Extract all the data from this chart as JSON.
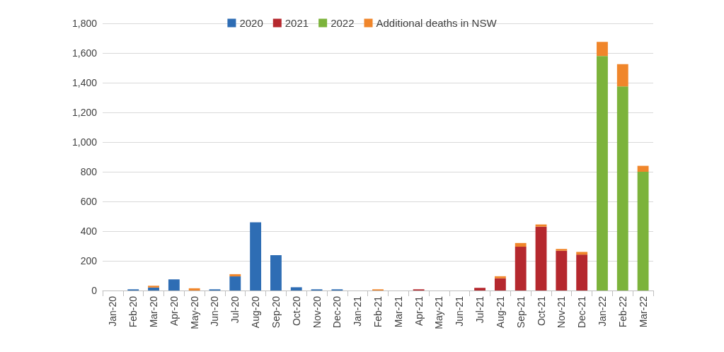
{
  "chart_data": {
    "type": "bar",
    "stacked": true,
    "categories": [
      "Jan-20",
      "Feb-20",
      "Mar-20",
      "Apr-20",
      "May-20",
      "Jun-20",
      "Jul-20",
      "Aug-20",
      "Sep-20",
      "Oct-20",
      "Nov-20",
      "Dec-20",
      "Jan-21",
      "Feb-21",
      "Mar-21",
      "Apr-21",
      "May-21",
      "Jun-21",
      "Jul-21",
      "Aug-21",
      "Sep-21",
      "Oct-21",
      "Nov-21",
      "Dec-21",
      "Jan-22",
      "Feb-22",
      "Mar-22"
    ],
    "series": [
      {
        "name": "2020",
        "color": "#2e6db4",
        "values": [
          0,
          8,
          20,
          75,
          null,
          8,
          95,
          460,
          238,
          22,
          8,
          8,
          null,
          null,
          null,
          null,
          null,
          null,
          null,
          null,
          null,
          null,
          null,
          null,
          null,
          null,
          null
        ]
      },
      {
        "name": "2021",
        "color": "#b5282e",
        "values": [
          null,
          null,
          null,
          null,
          null,
          null,
          null,
          null,
          null,
          null,
          null,
          null,
          0,
          null,
          0,
          8,
          0,
          0,
          18,
          82,
          295,
          430,
          268,
          242,
          null,
          null,
          null
        ]
      },
      {
        "name": "2022",
        "color": "#7cb33b",
        "values": [
          null,
          null,
          null,
          null,
          null,
          null,
          null,
          null,
          null,
          null,
          null,
          null,
          null,
          null,
          null,
          null,
          null,
          null,
          null,
          null,
          null,
          null,
          null,
          null,
          1580,
          1375,
          800
        ]
      },
      {
        "name": "Additional deaths in NSW",
        "color": "#f0862b",
        "values": [
          null,
          null,
          12,
          null,
          15,
          null,
          15,
          null,
          null,
          null,
          null,
          null,
          null,
          8,
          null,
          null,
          null,
          null,
          null,
          14,
          25,
          15,
          12,
          18,
          95,
          150,
          40
        ]
      }
    ],
    "ylim": [
      0,
      1800
    ],
    "yticks": [
      0,
      200,
      400,
      600,
      800,
      {
        "value": 1000,
        "label": "1,000"
      },
      {
        "value": 1200,
        "label": "1,200"
      },
      {
        "value": 1400,
        "label": "1,400"
      },
      {
        "value": 1600,
        "label": "1,600"
      },
      {
        "value": 1800,
        "label": "1,800"
      }
    ],
    "grid": "y",
    "legend": "top"
  }
}
